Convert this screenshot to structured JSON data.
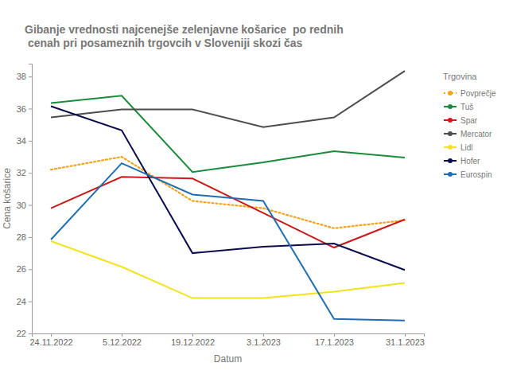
{
  "chart_data": {
    "type": "line",
    "title": "Gibanje vrednosti najcenejše zelenjavne košarice  po rednih\n cenah pri posameznih trgovcih v Sloveniji skozi čas",
    "x_label": "Datum",
    "y_label": "Cena košarice",
    "legend_title": "Trgovina",
    "legend": "right",
    "grid": false,
    "categories": [
      "24.11.2022",
      "5.12.2022",
      "19.12.2022",
      "3.1.2023",
      "17.1.2023",
      "31.1.2023"
    ],
    "ylim": [
      22,
      38.8
    ],
    "yticks": [
      22,
      24,
      26,
      28,
      30,
      32,
      34,
      36,
      38
    ],
    "series": [
      {
        "name": "Povprečje",
        "color": "#f5a31a",
        "line_style": "dotted",
        "values": [
          32.2,
          33.0,
          30.25,
          29.8,
          28.55,
          29.05
        ]
      },
      {
        "name": "Tuš",
        "color": "#1b8a3a",
        "line_style": "solid",
        "values": [
          36.35,
          36.8,
          32.05,
          32.65,
          33.35,
          32.95
        ]
      },
      {
        "name": "Spar",
        "color": "#cc1a1a",
        "line_style": "solid",
        "values": [
          29.8,
          31.75,
          31.65,
          29.5,
          27.35,
          29.1
        ]
      },
      {
        "name": "Mercator",
        "color": "#4d4d4d",
        "line_style": "solid",
        "values": [
          35.45,
          35.95,
          35.95,
          34.85,
          35.45,
          38.35
        ]
      },
      {
        "name": "Lidl",
        "color": "#f2e31c",
        "line_style": "solid",
        "values": [
          27.75,
          26.15,
          24.2,
          24.2,
          24.6,
          25.15
        ]
      },
      {
        "name": "Hofer",
        "color": "#0b0b4f",
        "line_style": "solid",
        "values": [
          36.15,
          34.65,
          27.0,
          27.4,
          27.6,
          25.95
        ]
      },
      {
        "name": "Eurospin",
        "color": "#1f6db3",
        "line_style": "solid",
        "values": [
          27.85,
          32.6,
          30.65,
          30.25,
          22.9,
          22.8
        ]
      }
    ]
  }
}
